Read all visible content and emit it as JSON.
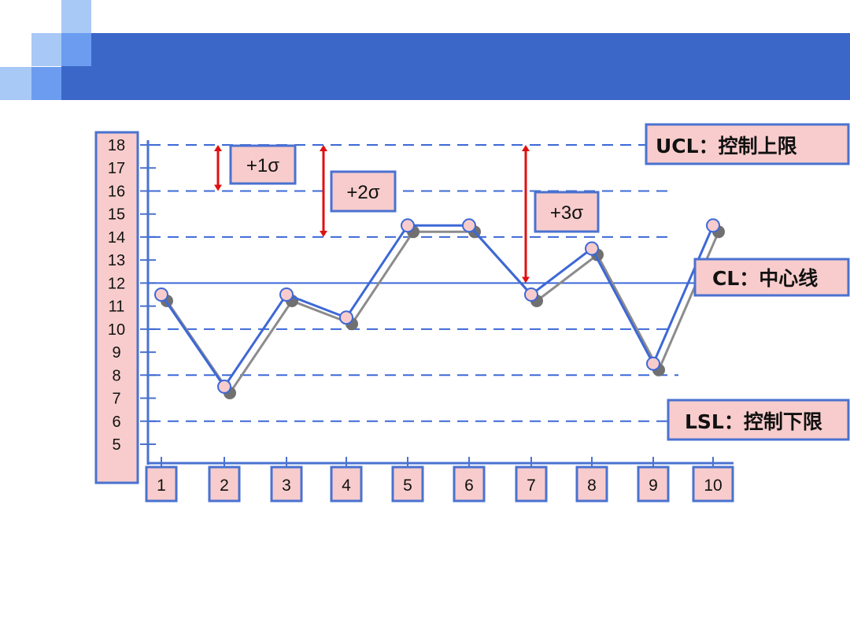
{
  "colors": {
    "header_bar": "#3a67c8",
    "light_square": "#a8c8f5",
    "mid_square": "#6b9cf0",
    "box_fill": "#f8cccc",
    "box_border": "#4a72d0",
    "line_blue": "#3d68d6",
    "shadow_line": "#8c8c8c",
    "arrow_red": "#e01010"
  },
  "chart_data": {
    "type": "line",
    "x": [
      1,
      2,
      3,
      4,
      5,
      6,
      7,
      8,
      9,
      10
    ],
    "x_tick_labels": [
      "1",
      "2",
      "3",
      "4",
      "5",
      "6",
      "7",
      "8",
      "9",
      "10"
    ],
    "y_tick_labels": [
      "18",
      "17",
      "16",
      "15",
      "14",
      "13",
      "12",
      "11",
      "10",
      "9",
      "8",
      "7",
      "6",
      "5"
    ],
    "ylim": [
      5,
      18
    ],
    "series": [
      {
        "values": [
          11.5,
          7.5,
          11.5,
          10.5,
          14.5,
          14.5,
          11.5,
          13.5,
          8.5,
          14.5
        ]
      }
    ],
    "center_line": 12,
    "reference_lines": [
      18,
      16,
      14,
      10,
      8,
      6
    ],
    "sigma_annotations": [
      {
        "label": "+1σ",
        "from": 16,
        "to": 18
      },
      {
        "label": "+2σ",
        "from": 14,
        "to": 18
      },
      {
        "label": "+3σ",
        "from": 12,
        "to": 18
      }
    ],
    "limit_labels": {
      "ucl": "UCL：控制上限",
      "cl": "CL：中心线",
      "lsl": "LSL：控制下限"
    }
  }
}
